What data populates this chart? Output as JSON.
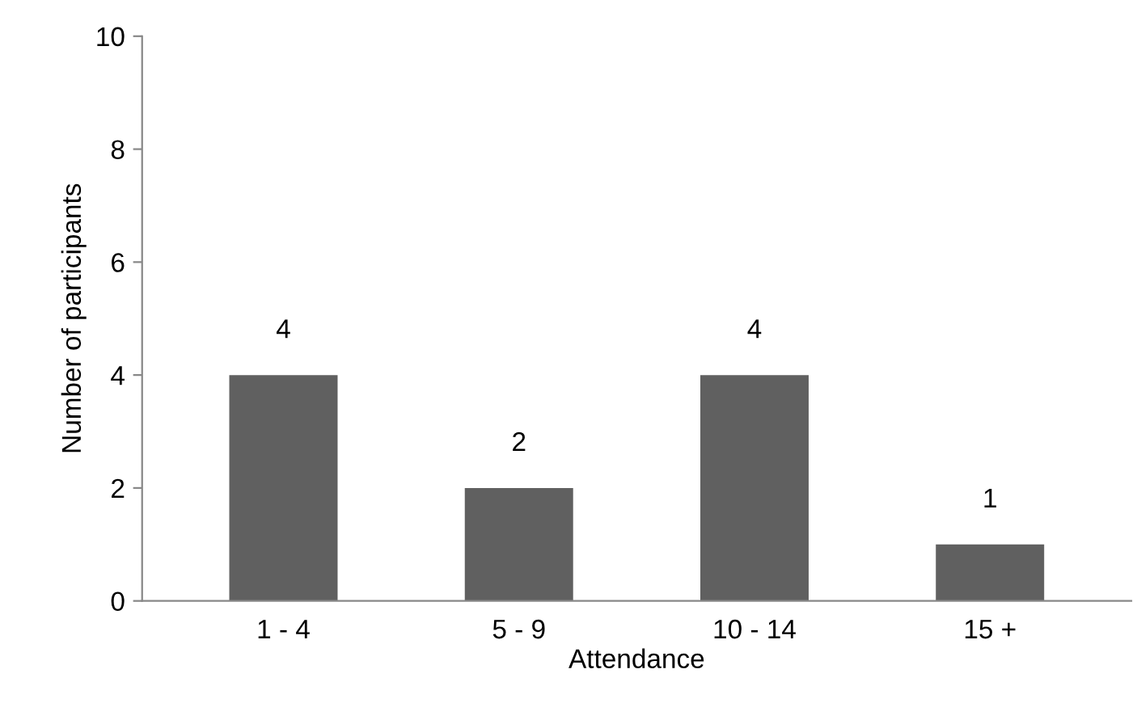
{
  "chart_data": {
    "type": "bar",
    "xlabel": "Attendance",
    "ylabel": "Number of participants",
    "categories": [
      "1 - 4",
      "5 - 9",
      "10 - 14",
      "15 +"
    ],
    "values": [
      4,
      2,
      4,
      1
    ],
    "color": "#606060",
    "ylim": [
      0,
      10
    ],
    "yticks": [
      0,
      2,
      4,
      6,
      8,
      10
    ],
    "grid": false,
    "data_labels": true
  }
}
